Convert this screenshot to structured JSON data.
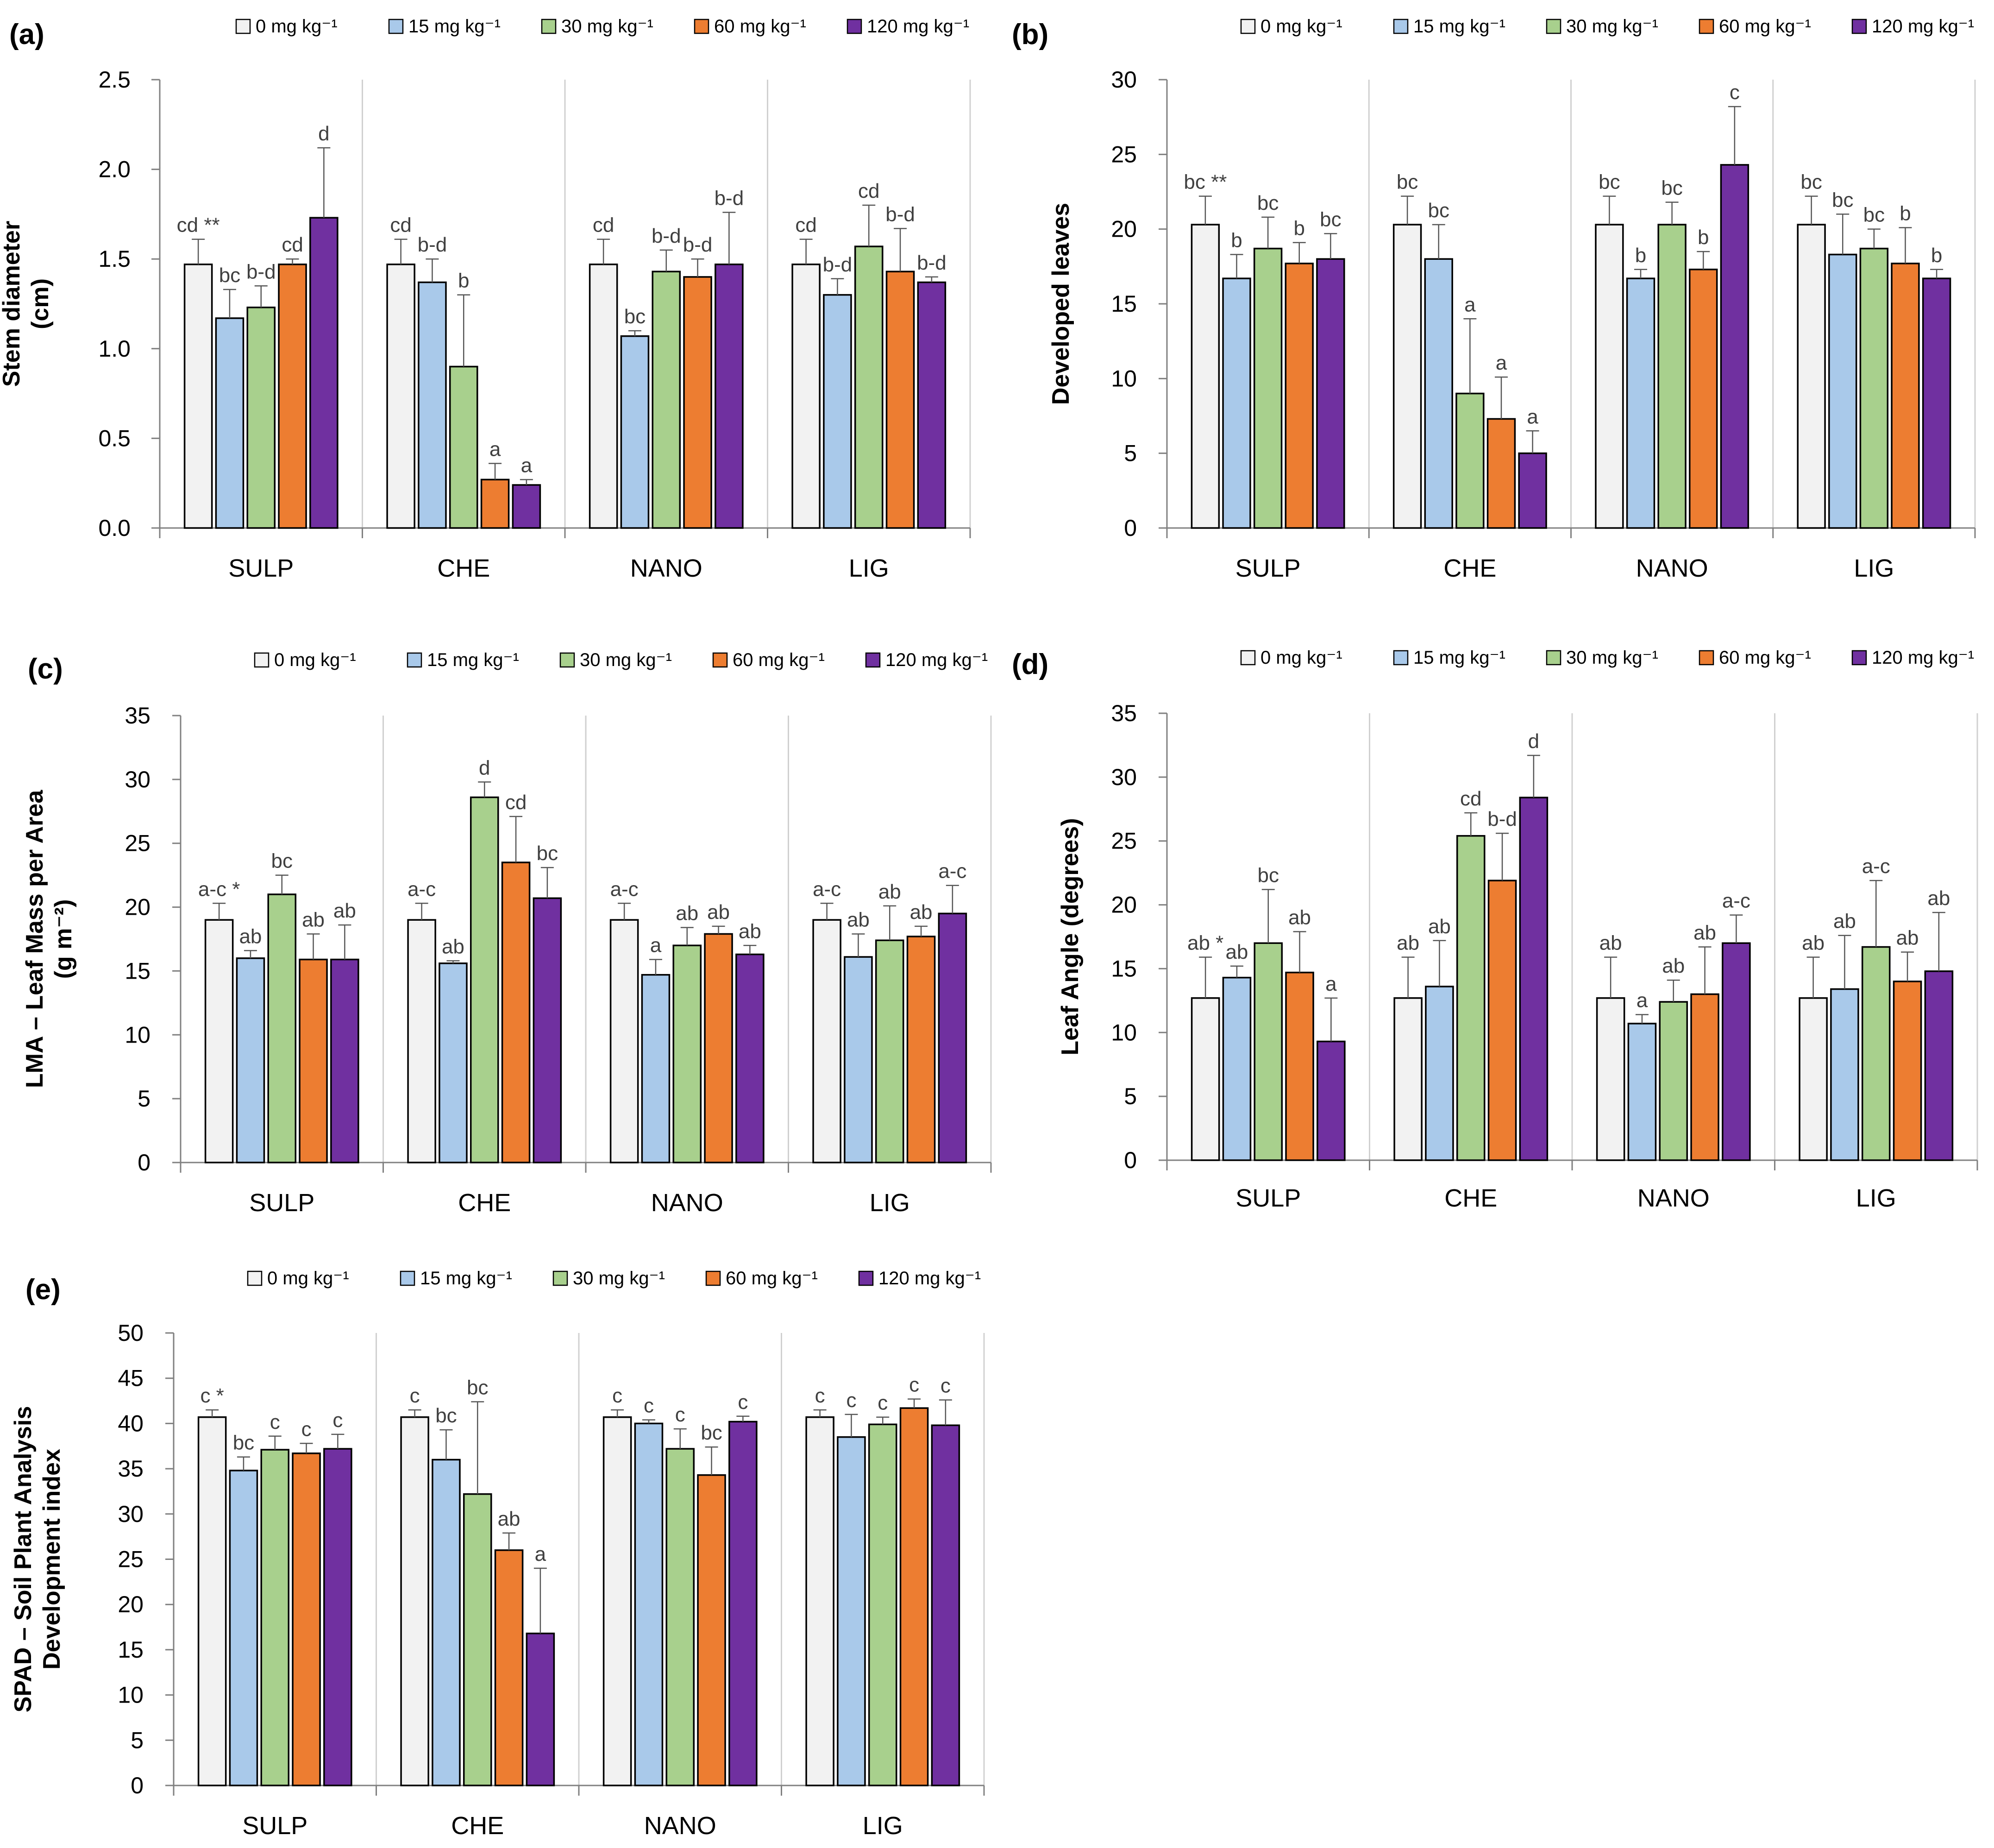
{
  "figure": {
    "concentrations": [
      "0 mg kg⁻¹",
      "15 mg kg⁻¹",
      "30 mg kg⁻¹",
      "60 mg kg⁻¹",
      "120 mg kg⁻¹"
    ],
    "series_colors": [
      "#f2f2f2",
      "#a9c9ea",
      "#a8d08d",
      "#ed7d31",
      "#7030a0"
    ]
  },
  "chart_data": [
    {
      "panel": "(a)",
      "type": "bar",
      "ylabel": [
        "Stem diameter",
        "(cm)"
      ],
      "categories": [
        "SULP",
        "CHE",
        "NANO",
        "LIG"
      ],
      "ylim": [
        0,
        2.5
      ],
      "yticks": [
        "0.0",
        "0.5",
        "1.0",
        "1.5",
        "2.0",
        "2.5"
      ],
      "series": [
        {
          "name": "0 mg kg⁻¹",
          "values": [
            1.47,
            1.47,
            1.47,
            1.47
          ],
          "errors": [
            0.14,
            0.14,
            0.14,
            0.14
          ],
          "letters": [
            "cd **",
            "cd",
            "cd",
            "cd"
          ]
        },
        {
          "name": "15 mg kg⁻¹",
          "values": [
            1.17,
            1.37,
            1.07,
            1.3
          ],
          "errors": [
            0.16,
            0.13,
            0.03,
            0.09
          ],
          "letters": [
            "bc",
            "b-d",
            "bc",
            "b-d"
          ]
        },
        {
          "name": "30 mg kg⁻¹",
          "values": [
            1.23,
            0.9,
            1.43,
            1.57
          ],
          "errors": [
            0.12,
            0.4,
            0.12,
            0.23
          ],
          "letters": [
            "b-d",
            "b",
            "b-d",
            "cd"
          ]
        },
        {
          "name": "60 mg kg⁻¹",
          "values": [
            1.47,
            0.27,
            1.4,
            1.43
          ],
          "errors": [
            0.03,
            0.09,
            0.1,
            0.24
          ],
          "letters": [
            "cd",
            "a",
            "b-d",
            "b-d"
          ]
        },
        {
          "name": "120 mg kg⁻¹",
          "values": [
            1.73,
            0.24,
            1.47,
            1.37
          ],
          "errors": [
            0.39,
            0.03,
            0.29,
            0.03
          ],
          "letters": [
            "d",
            "a",
            "b-d",
            "b-d"
          ]
        }
      ]
    },
    {
      "panel": "(b)",
      "type": "bar",
      "ylabel": [
        "Developed leaves"
      ],
      "categories": [
        "SULP",
        "CHE",
        "NANO",
        "LIG"
      ],
      "ylim": [
        0,
        30
      ],
      "yticks": [
        "0",
        "5",
        "10",
        "15",
        "20",
        "25",
        "30"
      ],
      "series": [
        {
          "name": "0 mg kg⁻¹",
          "values": [
            20.3,
            20.3,
            20.3,
            20.3
          ],
          "errors": [
            1.9,
            1.9,
            1.9,
            1.9
          ],
          "letters": [
            "bc **",
            "bc",
            "bc",
            "bc"
          ]
        },
        {
          "name": "15 mg kg⁻¹",
          "values": [
            16.7,
            18.0,
            16.7,
            18.3
          ],
          "errors": [
            1.6,
            2.3,
            0.6,
            2.7
          ],
          "letters": [
            "b",
            "bc",
            "b",
            "bc"
          ]
        },
        {
          "name": "30 mg kg⁻¹",
          "values": [
            18.7,
            9.0,
            20.3,
            18.7
          ],
          "errors": [
            2.1,
            5.0,
            1.5,
            1.3
          ],
          "letters": [
            "bc",
            "a",
            "bc",
            "bc"
          ]
        },
        {
          "name": "60 mg kg⁻¹",
          "values": [
            17.7,
            7.3,
            17.3,
            17.7
          ],
          "errors": [
            1.4,
            2.8,
            1.2,
            2.4
          ],
          "letters": [
            "b",
            "a",
            "b",
            "b"
          ]
        },
        {
          "name": "120 mg kg⁻¹",
          "values": [
            18.0,
            5.0,
            24.3,
            16.7
          ],
          "errors": [
            1.7,
            1.5,
            3.9,
            0.6
          ],
          "letters": [
            "bc",
            "a",
            "c",
            "b"
          ]
        }
      ]
    },
    {
      "panel": "(c)",
      "type": "bar",
      "ylabel": [
        "LMA – Leaf Mass per Area",
        "(g m⁻²)"
      ],
      "categories": [
        "SULP",
        "CHE",
        "NANO",
        "LIG"
      ],
      "ylim": [
        0,
        35
      ],
      "yticks": [
        "0",
        "5",
        "10",
        "15",
        "20",
        "25",
        "30",
        "35"
      ],
      "series": [
        {
          "name": "0 mg kg⁻¹",
          "values": [
            19.0,
            19.0,
            19.0,
            19.0
          ],
          "errors": [
            1.3,
            1.3,
            1.3,
            1.3
          ],
          "letters": [
            "a-c *",
            "a-c",
            "a-c",
            "a-c"
          ]
        },
        {
          "name": "15 mg kg⁻¹",
          "values": [
            16.0,
            15.6,
            14.7,
            16.1
          ],
          "errors": [
            0.6,
            0.2,
            1.2,
            1.8
          ],
          "letters": [
            "ab",
            "ab",
            "a",
            "ab"
          ]
        },
        {
          "name": "30 mg kg⁻¹",
          "values": [
            21.0,
            28.6,
            17.0,
            17.4
          ],
          "errors": [
            1.5,
            1.2,
            1.4,
            2.7
          ],
          "letters": [
            "bc",
            "d",
            "ab",
            "ab"
          ]
        },
        {
          "name": "60 mg kg⁻¹",
          "values": [
            15.9,
            23.5,
            17.9,
            17.7
          ],
          "errors": [
            2.0,
            3.6,
            0.6,
            0.8
          ],
          "letters": [
            "ab",
            "cd",
            "ab",
            "ab"
          ]
        },
        {
          "name": "120 mg kg⁻¹",
          "values": [
            15.9,
            20.7,
            16.3,
            19.5
          ],
          "errors": [
            2.7,
            2.4,
            0.7,
            2.2
          ],
          "letters": [
            "ab",
            "bc",
            "ab",
            "a-c"
          ]
        }
      ]
    },
    {
      "panel": "(d)",
      "type": "bar",
      "ylabel": [
        "Leaf Angle (degrees)"
      ],
      "categories": [
        "SULP",
        "CHE",
        "NANO",
        "LIG"
      ],
      "ylim": [
        0,
        35
      ],
      "yticks": [
        "0",
        "5",
        "10",
        "15",
        "20",
        "25",
        "30",
        "35"
      ],
      "series": [
        {
          "name": "0 mg kg⁻¹",
          "values": [
            12.7,
            12.7,
            12.7,
            12.7
          ],
          "errors": [
            3.2,
            3.2,
            3.2,
            3.2
          ],
          "letters": [
            "ab *",
            "ab",
            "ab",
            "ab"
          ]
        },
        {
          "name": "15 mg kg⁻¹",
          "values": [
            14.3,
            13.6,
            10.7,
            13.4
          ],
          "errors": [
            0.9,
            3.6,
            0.7,
            4.2
          ],
          "letters": [
            "ab",
            "ab",
            "a",
            "ab"
          ]
        },
        {
          "name": "30 mg kg⁻¹",
          "values": [
            17.0,
            25.4,
            12.4,
            16.7
          ],
          "errors": [
            4.2,
            1.8,
            1.7,
            5.2
          ],
          "letters": [
            "bc",
            "cd",
            "ab",
            "a-c"
          ]
        },
        {
          "name": "60 mg kg⁻¹",
          "values": [
            14.7,
            21.9,
            13.0,
            14.0
          ],
          "errors": [
            3.2,
            3.7,
            3.7,
            2.3
          ],
          "letters": [
            "ab",
            "b-d",
            "ab",
            "ab"
          ]
        },
        {
          "name": "120 mg kg⁻¹",
          "values": [
            9.3,
            28.4,
            17.0,
            14.8
          ],
          "errors": [
            3.4,
            3.3,
            2.2,
            4.6
          ],
          "letters": [
            "a",
            "d",
            "a-c",
            "ab"
          ]
        }
      ]
    },
    {
      "panel": "(e)",
      "type": "bar",
      "ylabel": [
        "SPAD – Soil Plant Analysis",
        "Development index"
      ],
      "categories": [
        "SULP",
        "CHE",
        "NANO",
        "LIG"
      ],
      "ylim": [
        0,
        50
      ],
      "yticks": [
        "0",
        "5",
        "10",
        "15",
        "20",
        "25",
        "30",
        "35",
        "40",
        "45",
        "50"
      ],
      "series": [
        {
          "name": "0 mg kg⁻¹",
          "values": [
            40.7,
            40.7,
            40.7,
            40.7
          ],
          "errors": [
            0.8,
            0.8,
            0.8,
            0.8
          ],
          "letters": [
            "c *",
            "c",
            "c",
            "c"
          ]
        },
        {
          "name": "15 mg kg⁻¹",
          "values": [
            34.8,
            36.0,
            40.0,
            38.5
          ],
          "errors": [
            1.5,
            3.3,
            0.4,
            2.5
          ],
          "letters": [
            "bc",
            "bc",
            "c",
            "c"
          ]
        },
        {
          "name": "30 mg kg⁻¹",
          "values": [
            37.1,
            32.2,
            37.2,
            39.9
          ],
          "errors": [
            1.5,
            10.2,
            2.2,
            0.8
          ],
          "letters": [
            "c",
            "bc",
            "c",
            "c"
          ]
        },
        {
          "name": "60 mg kg⁻¹",
          "values": [
            36.7,
            26.0,
            34.3,
            41.7
          ],
          "errors": [
            1.1,
            1.9,
            3.1,
            1.0
          ],
          "letters": [
            "c",
            "ab",
            "bc",
            "c"
          ]
        },
        {
          "name": "120 mg kg⁻¹",
          "values": [
            37.2,
            16.8,
            40.2,
            39.8
          ],
          "errors": [
            1.6,
            7.2,
            0.6,
            2.8
          ],
          "letters": [
            "c",
            "a",
            "c",
            "c"
          ]
        }
      ]
    }
  ]
}
